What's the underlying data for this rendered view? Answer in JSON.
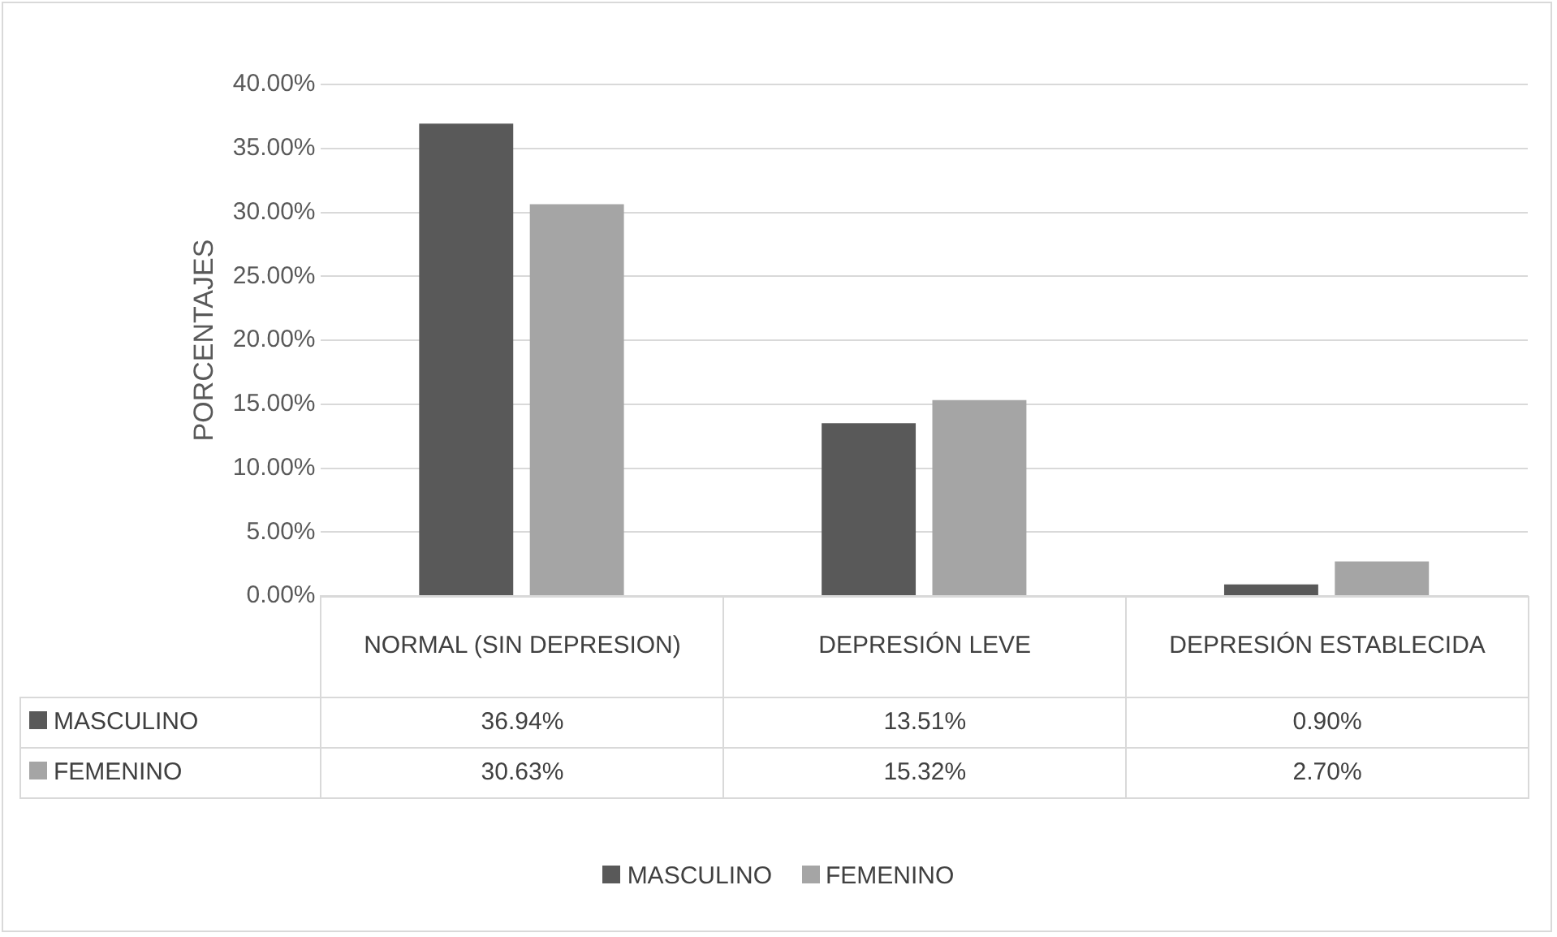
{
  "chart_data": {
    "type": "bar",
    "ylabel": "PORCENTAJES",
    "categories": [
      "NORMAL (SIN DEPRESION)",
      "DEPRESIÓN LEVE",
      "DEPRESIÓN ESTABLECIDA"
    ],
    "series": [
      {
        "name": "MASCULINO",
        "color": "#595959",
        "values": [
          36.94,
          13.51,
          0.9
        ],
        "value_labels": [
          "36.94%",
          "13.51%",
          "0.90%"
        ]
      },
      {
        "name": "FEMENINO",
        "color": "#a5a5a5",
        "values": [
          30.63,
          15.32,
          2.7
        ],
        "value_labels": [
          "30.63%",
          "15.32%",
          "2.70%"
        ]
      }
    ],
    "ylim": [
      0,
      40
    ],
    "yticks": [
      {
        "value": 0,
        "label": "0.00%"
      },
      {
        "value": 5,
        "label": "5.00%"
      },
      {
        "value": 10,
        "label": "10.00%"
      },
      {
        "value": 15,
        "label": "15.00%"
      },
      {
        "value": 20,
        "label": "20.00%"
      },
      {
        "value": 25,
        "label": "25.00%"
      },
      {
        "value": 30,
        "label": "30.00%"
      },
      {
        "value": 35,
        "label": "35.00%"
      },
      {
        "value": 40,
        "label": "40.00%"
      }
    ],
    "grid": "y",
    "legend": "bottom"
  }
}
